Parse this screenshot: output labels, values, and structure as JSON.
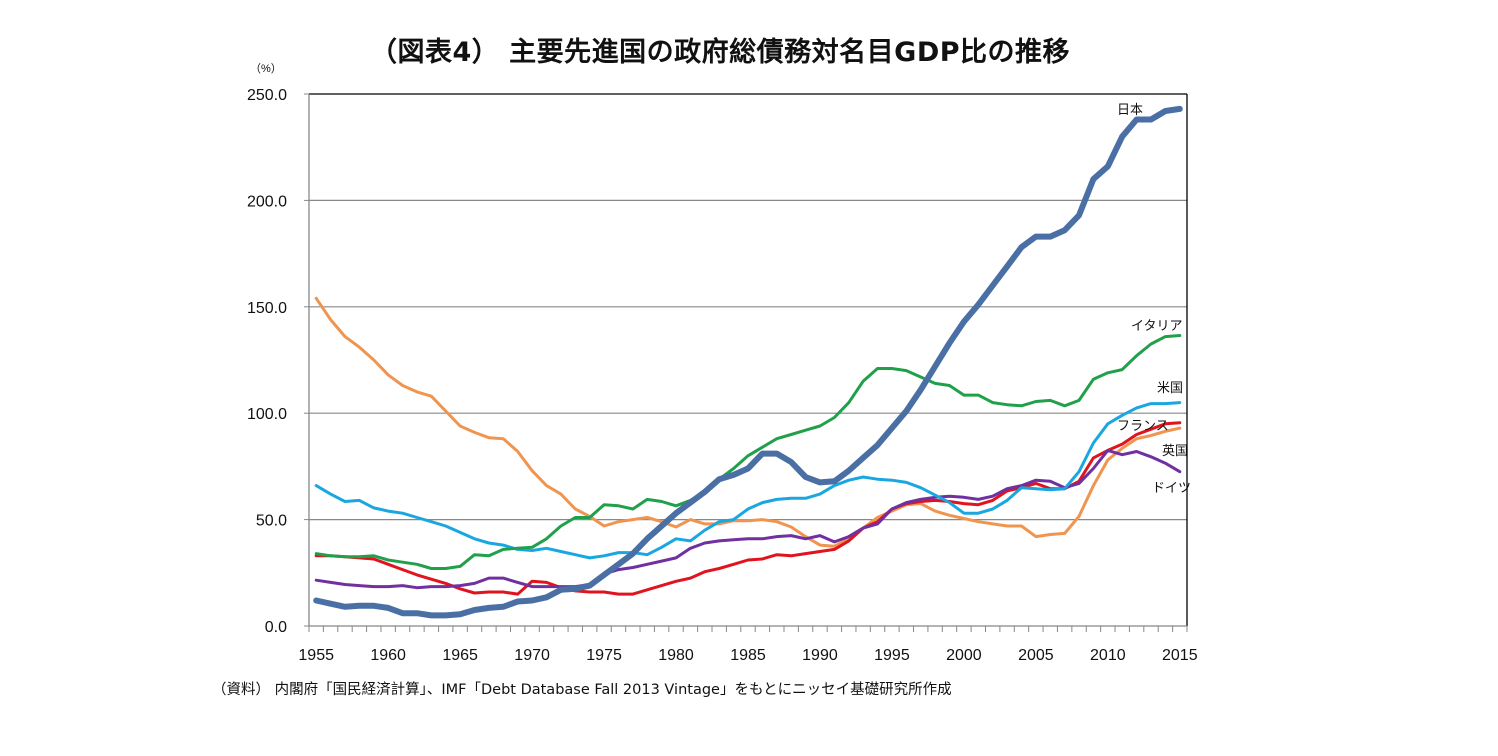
{
  "chart_data": {
    "type": "line",
    "title": "（図表4） 主要先進国の政府総債務対名目GDP比の推移",
    "xlabel": "",
    "ylabel": "（%）",
    "ylim": [
      0,
      250
    ],
    "yticks": [
      "0.0",
      "50.0",
      "100.0",
      "150.0",
      "200.0",
      "250.0"
    ],
    "ytick_values": [
      0,
      50,
      100,
      150,
      200,
      250
    ],
    "xticks": [
      "1955",
      "1960",
      "1965",
      "1970",
      "1975",
      "1980",
      "1985",
      "1990",
      "1995",
      "2000",
      "2005",
      "2010",
      "2015"
    ],
    "x_start": 1955,
    "x_end": 2015,
    "grid": "horizontal",
    "legend": "inline labels at right end of lines",
    "source": "（資料） 内閣府「国民経済計算」、IMF「Debt Database Fall 2013 Vintage」をもとにニッセイ基礎研究所作成",
    "series": [
      {
        "name": "日本",
        "color": "#4a6fa5",
        "width": 6,
        "values": [
          12,
          10.5,
          9,
          9.5,
          9.5,
          8.5,
          6,
          6,
          5,
          5,
          5.5,
          7.5,
          8.5,
          9,
          11.5,
          12,
          13.5,
          17,
          17.5,
          19,
          24,
          29,
          34,
          41,
          47,
          53,
          58,
          63,
          69,
          71,
          74,
          81,
          81,
          77,
          70,
          67.5,
          68,
          73,
          79,
          85,
          93,
          101,
          111,
          122,
          133,
          143,
          151,
          160,
          169,
          178,
          183,
          183,
          186,
          193,
          210,
          216,
          230,
          238,
          238,
          242,
          243
        ]
      },
      {
        "name": "イタリア",
        "color": "#21a04b",
        "width": 3,
        "values": [
          34,
          33,
          32.5,
          32.5,
          33,
          31,
          30,
          29,
          27,
          27,
          28,
          33.5,
          33,
          36,
          36.5,
          37,
          41,
          47,
          51,
          51,
          57,
          56.5,
          55,
          59.5,
          58.5,
          56.5,
          59,
          63,
          69,
          74,
          80,
          84,
          88,
          90,
          92,
          94,
          98,
          105,
          115,
          121,
          121,
          120,
          117,
          114,
          113,
          108.5,
          108.5,
          105,
          104,
          103.5,
          105.5,
          106,
          103.5,
          106,
          116,
          119,
          120.5,
          127,
          132.5,
          136,
          136.5
        ]
      },
      {
        "name": "米国",
        "color": "#1aa7e0",
        "width": 3,
        "values": [
          66,
          62,
          58.5,
          59,
          55.5,
          54,
          53,
          51,
          49,
          47,
          44,
          41,
          39,
          38,
          36,
          35.5,
          36.5,
          35,
          33.5,
          32,
          33,
          34.5,
          34.5,
          33.5,
          37,
          41,
          40,
          45,
          49,
          50,
          55,
          58,
          59.5,
          60,
          60,
          62,
          66,
          68.5,
          70,
          69,
          68.5,
          67.5,
          65,
          61.5,
          58,
          53,
          53,
          55,
          59,
          65,
          64.5,
          64,
          64.5,
          72.5,
          86,
          95,
          99,
          102.5,
          104.5,
          104.5,
          105
        ]
      },
      {
        "name": "フランス",
        "color": "#e0141e",
        "width": 3,
        "values": [
          33,
          33,
          32.5,
          32,
          31.5,
          29,
          26.5,
          24,
          22,
          20,
          17.5,
          15.5,
          16,
          16,
          15,
          21,
          20.5,
          18,
          16.5,
          16,
          16,
          15,
          15,
          17,
          19,
          21,
          22.5,
          25.5,
          27,
          29,
          31,
          31.5,
          33.5,
          33,
          34,
          35,
          36,
          40,
          46,
          49,
          55,
          57.5,
          58.5,
          59,
          58.5,
          57.5,
          57,
          59,
          63.5,
          65,
          67,
          64.5,
          64.5,
          68,
          79,
          82.5,
          85.5,
          90,
          92.5,
          95,
          95.5
        ]
      },
      {
        "name": "英国",
        "color": "#f0954f",
        "width": 3,
        "values": [
          154,
          144,
          136,
          131,
          125,
          118,
          113,
          110,
          108,
          101,
          94,
          91,
          88.5,
          88,
          82,
          73,
          66,
          62,
          55,
          51.5,
          47,
          49,
          50,
          51,
          49,
          46.5,
          50,
          48,
          48,
          49.5,
          49.5,
          50,
          49,
          46.5,
          42,
          38,
          37.5,
          41,
          46,
          51,
          54,
          57,
          57.5,
          54,
          52,
          50.5,
          49,
          48,
          47,
          47,
          42,
          43,
          43.5,
          51.5,
          66,
          78,
          83.5,
          88,
          89.5,
          91.5,
          93
        ]
      },
      {
        "name": "ドイツ",
        "color": "#7030a0",
        "width": 3,
        "values": [
          21.5,
          20.5,
          19.5,
          19,
          18.5,
          18.5,
          19,
          18,
          18.5,
          18.5,
          19,
          20,
          22.5,
          22.5,
          20.5,
          18.5,
          18.5,
          18.5,
          18.5,
          19.5,
          24.5,
          26.5,
          27.5,
          29,
          30.5,
          32,
          36.5,
          39,
          40,
          40.5,
          41,
          41,
          42,
          42.5,
          41,
          42.5,
          39.5,
          42,
          46,
          48,
          55,
          58,
          59.5,
          60.5,
          61,
          60.5,
          59.5,
          61,
          64.5,
          66,
          68.5,
          68,
          65,
          67,
          74,
          82.5,
          80.5,
          82,
          79.5,
          76.5,
          72.5
        ]
      }
    ]
  }
}
